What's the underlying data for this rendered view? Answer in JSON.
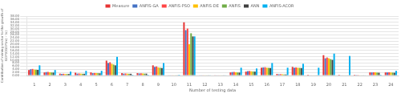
{
  "chart_data": {
    "type": "bar",
    "xlabel": "Number of testing data",
    "ylabel": "Contribution of mining sector to the growth of\nGDP(CGDP(m) - %)",
    "categories": [
      1,
      2,
      3,
      4,
      5,
      6,
      7,
      8,
      9,
      10,
      11,
      12,
      13,
      14,
      15,
      16,
      17,
      18,
      19,
      20,
      21,
      22,
      23,
      24
    ],
    "series": [
      {
        "name": "Measure",
        "color": "#e63333",
        "values": [
          3.5,
          2.0,
          1.2,
          1.8,
          2.0,
          9.5,
          1.5,
          1.5,
          6.5,
          0.3,
          34.0,
          0.3,
          0.2,
          2.0,
          2.5,
          5.0,
          1.0,
          5.5,
          0.5,
          13.0,
          0.5,
          0.5,
          2.0,
          2.0
        ]
      },
      {
        "name": "ANFIS-GA",
        "color": "#4472c4",
        "values": [
          4.0,
          2.2,
          1.0,
          1.2,
          1.5,
          8.0,
          1.2,
          1.3,
          5.5,
          0.2,
          29.0,
          0.2,
          0.3,
          2.2,
          2.8,
          5.2,
          0.8,
          5.0,
          0.3,
          11.0,
          0.3,
          0.4,
          2.0,
          2.0
        ]
      },
      {
        "name": "ANFIS-PSO",
        "color": "#ff4444",
        "values": [
          4.2,
          2.3,
          1.1,
          1.3,
          1.6,
          8.5,
          1.3,
          1.4,
          5.8,
          0.2,
          30.0,
          0.2,
          0.3,
          2.3,
          2.9,
          5.3,
          0.9,
          5.2,
          0.3,
          11.5,
          0.3,
          0.4,
          2.1,
          2.1
        ]
      },
      {
        "name": "ANFIS-DE",
        "color": "#ffc000",
        "values": [
          3.8,
          2.1,
          1.0,
          1.2,
          1.5,
          7.5,
          1.2,
          1.3,
          5.2,
          0.2,
          20.0,
          0.2,
          0.3,
          2.1,
          2.7,
          5.0,
          0.8,
          5.0,
          0.3,
          11.0,
          0.3,
          0.3,
          2.0,
          2.0
        ]
      },
      {
        "name": "ANFIS",
        "color": "#70ad47",
        "values": [
          3.7,
          2.0,
          1.0,
          1.1,
          1.5,
          7.0,
          1.1,
          1.2,
          5.0,
          0.2,
          27.0,
          0.2,
          0.3,
          2.0,
          2.6,
          4.9,
          0.7,
          4.9,
          0.3,
          10.5,
          0.3,
          0.3,
          1.9,
          1.9
        ]
      },
      {
        "name": "ANN",
        "color": "#404040",
        "values": [
          3.6,
          1.9,
          1.0,
          1.1,
          1.4,
          6.5,
          1.1,
          1.2,
          4.8,
          0.2,
          25.0,
          0.2,
          0.2,
          1.9,
          2.5,
          4.8,
          0.7,
          4.8,
          0.3,
          10.0,
          0.3,
          0.3,
          1.8,
          1.8
        ]
      },
      {
        "name": "ANFIS-ACOR",
        "color": "#00b0f0",
        "values": [
          6.5,
          3.5,
          2.5,
          3.0,
          3.0,
          12.0,
          0.5,
          0.5,
          8.0,
          0.5,
          25.0,
          0.2,
          0.2,
          5.0,
          4.5,
          8.0,
          5.0,
          7.5,
          5.0,
          14.0,
          12.5,
          0.3,
          0.5,
          3.0
        ]
      }
    ],
    "ylim": [
      0,
      38
    ],
    "yticks": [
      {
        "value": 0,
        "label": "0.00"
      },
      {
        "value": 2,
        "label": "2.00"
      },
      {
        "value": 4,
        "label": "4.00"
      },
      {
        "value": 6,
        "label": "6.00"
      },
      {
        "value": 8,
        "label": "8.00"
      },
      {
        "value": 10,
        "label": "10.00"
      },
      {
        "value": 12,
        "label": "12.00"
      },
      {
        "value": 14,
        "label": "14.00"
      },
      {
        "value": 16,
        "label": "16.00"
      },
      {
        "value": 18,
        "label": "18.00"
      },
      {
        "value": 20,
        "label": "20.00"
      },
      {
        "value": 22,
        "label": "22.00"
      },
      {
        "value": 24,
        "label": "24.00"
      },
      {
        "value": 26,
        "label": "26.00"
      },
      {
        "value": 28,
        "label": "28.00"
      },
      {
        "value": 30,
        "label": "30.00"
      },
      {
        "value": 32,
        "label": "32.00"
      },
      {
        "value": 34,
        "label": "34.00"
      },
      {
        "value": 36,
        "label": "36.00"
      },
      {
        "value": 38,
        "label": "38.00"
      }
    ],
    "grid": true,
    "legend": "top"
  }
}
